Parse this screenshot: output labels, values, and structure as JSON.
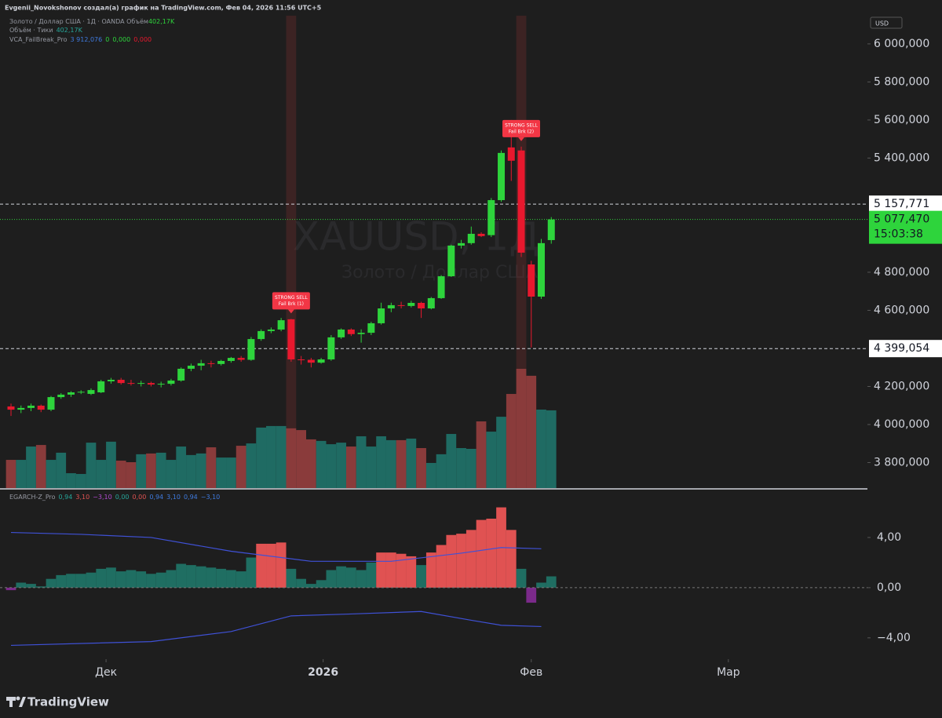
{
  "header": {
    "author": "Evgenii_Novokshonov создал(а) график на TradingView.com, Фев 04, 2026 11:56 UTC+5",
    "legend": [
      [
        "Золото / Доллар США · 1Д · OANDA  Объём",
        "402,17K"
      ],
      [
        "Объём · Тики",
        "402,17K"
      ],
      [
        "VCA_FailBreak_Pro",
        "3 912,076",
        "0",
        "0,000",
        "0,000"
      ]
    ],
    "watermark": "XAUUSD, 1Д",
    "watermark_sub": "Золото / Доллар США",
    "currency": "USD",
    "brand": "TradingView"
  },
  "chart_data": [
    {
      "type": "candlestick",
      "open": [
        4095,
        4078,
        4087,
        4099,
        4078,
        4144,
        4157,
        4169,
        4161,
        4169,
        4227,
        4235,
        4218,
        4214,
        4218,
        4210,
        4214,
        4231,
        4293,
        4309,
        4322,
        4318,
        4334,
        4350,
        4340,
        4449,
        4491,
        4499,
        4553,
        4342,
        4340,
        4325,
        4342,
        4458,
        4499,
        4475,
        4482,
        4532,
        4610,
        4627,
        4623,
        4639,
        4610,
        4664,
        4779,
        4940,
        4953,
        5002,
        4995,
        5179,
        5456,
        5440,
        4841,
        4672,
        4969
      ],
      "high": [
        4110,
        4100,
        4110,
        4105,
        4150,
        4165,
        4175,
        4180,
        4190,
        4235,
        4245,
        4245,
        4235,
        4230,
        4225,
        4225,
        4240,
        4300,
        4320,
        4340,
        4335,
        4340,
        4355,
        4360,
        4460,
        4500,
        4510,
        4560,
        4555,
        4360,
        4350,
        4350,
        4470,
        4505,
        4505,
        4500,
        4540,
        4640,
        4640,
        4645,
        4650,
        4645,
        4670,
        4785,
        4945,
        4970,
        5040,
        5010,
        5190,
        5440,
        5600,
        5460,
        4860,
        4975,
        5090
      ],
      "low": [
        4045,
        4060,
        4070,
        4065,
        4070,
        4135,
        4145,
        4160,
        4155,
        4165,
        4215,
        4210,
        4205,
        4200,
        4200,
        4195,
        4205,
        4225,
        4280,
        4285,
        4300,
        4310,
        4325,
        4330,
        4335,
        4440,
        4480,
        4490,
        4330,
        4315,
        4300,
        4320,
        4335,
        4450,
        4465,
        4430,
        4470,
        4525,
        4590,
        4610,
        4615,
        4560,
        4605,
        4660,
        4775,
        4925,
        4945,
        4985,
        4985,
        5170,
        5280,
        4880,
        4405,
        4660,
        4950
      ],
      "close": [
        4078,
        4087,
        4099,
        4078,
        4144,
        4157,
        4169,
        4172,
        4181,
        4227,
        4235,
        4218,
        4214,
        4218,
        4210,
        4214,
        4231,
        4293,
        4309,
        4322,
        4318,
        4334,
        4350,
        4340,
        4449,
        4491,
        4499,
        4548,
        4342,
        4340,
        4325,
        4342,
        4458,
        4499,
        4475,
        4482,
        4532,
        4610,
        4627,
        4623,
        4639,
        4610,
        4664,
        4779,
        4940,
        4953,
        5002,
        4990,
        5179,
        5427,
        5386,
        4903,
        4672,
        4953,
        5077.47
      ],
      "volume": [
        146,
        146,
        215,
        223,
        146,
        183,
        77,
        73,
        235,
        146,
        240,
        142,
        134,
        175,
        179,
        183,
        146,
        215,
        171,
        179,
        211,
        158,
        158,
        219,
        231,
        313,
        321,
        321,
        309,
        300,
        252,
        244,
        227,
        235,
        215,
        268,
        215,
        268,
        248,
        248,
        256,
        207,
        130,
        175,
        280,
        207,
        203,
        345,
        292,
        369,
        487,
        617,
        581,
        406,
        402.17
      ],
      "vlim": [
        0,
        617
      ],
      "up_color": "#2ed43c",
      "down_color": "#e8182e",
      "volume_up_color": "#1f6b63",
      "volume_down_color": "#8a3b3b",
      "ylim": [
        3666,
        6148
      ],
      "yticks": [
        {
          "value": 3800,
          "label": "3 800,000"
        },
        {
          "value": 4000,
          "label": "4 000,000"
        },
        {
          "value": 4200,
          "label": "4 200,000"
        },
        {
          "value": 4600,
          "label": "4 600,000"
        },
        {
          "value": 4800,
          "label": "4 800,000"
        },
        {
          "value": 5400,
          "label": "5 400,000"
        },
        {
          "value": 5600,
          "label": "5 600,000"
        },
        {
          "value": 5800,
          "label": "5 800,000"
        },
        {
          "value": 6000,
          "label": "6 000,000"
        }
      ],
      "xlim": [
        -1.1,
        85.6
      ],
      "xticks": [
        {
          "value": 9.5,
          "label": "Дек"
        },
        {
          "value": 31.2,
          "label": "2026"
        },
        {
          "value": 52.0,
          "label": "Фев"
        },
        {
          "value": 71.7,
          "label": "Мар"
        }
      ],
      "levels": [
        {
          "value": 5157.771,
          "label": "5 157,771"
        },
        {
          "value": 4399.054,
          "label": "4 399,054"
        }
      ],
      "last": {
        "value": 5077.47,
        "label": "5 077,470",
        "timer": "15:03:38"
      },
      "signals": [
        {
          "x": 28,
          "title": "STRONG SELL",
          "label": "Fail Brk (1)"
        },
        {
          "x": 51,
          "title": "STRONG SELL",
          "label": "Fail Brk (2)"
        }
      ]
    },
    {
      "type": "histogram",
      "name": "EGARCH-Z_Pro",
      "legend_values": [
        "0,94",
        "3,10",
        "−3,10",
        "0,00",
        "0,00",
        "0,94",
        "3,10",
        "0,94",
        "−3,10"
      ],
      "values": [
        -0.2,
        0.4,
        0.3,
        0.1,
        0.7,
        1.0,
        1.1,
        1.1,
        1.2,
        1.5,
        1.6,
        1.3,
        1.4,
        1.3,
        1.1,
        1.2,
        1.4,
        1.9,
        1.8,
        1.7,
        1.6,
        1.5,
        1.4,
        1.3,
        2.4,
        3.5,
        3.5,
        3.6,
        1.5,
        0.7,
        0.3,
        0.6,
        1.4,
        1.7,
        1.6,
        1.4,
        2.0,
        2.8,
        2.8,
        2.7,
        2.5,
        1.8,
        2.8,
        3.4,
        4.2,
        4.3,
        4.6,
        5.4,
        5.5,
        6.4,
        4.6,
        1.5,
        -1.2,
        0.4,
        0.9
      ],
      "upper_band": {
        "x": [
          0,
          7,
          14,
          22,
          30,
          38,
          45,
          49,
          53
        ],
        "values": [
          4.4,
          4.25,
          4.0,
          2.9,
          2.1,
          2.1,
          2.75,
          3.2,
          3.1
        ]
      },
      "lower_band": {
        "x": [
          0,
          14,
          22,
          28,
          34,
          41,
          46,
          49,
          53
        ],
        "values": [
          -4.6,
          -4.3,
          -3.5,
          -2.25,
          -2.1,
          -1.9,
          -2.6,
          -3.0,
          -3.1
        ]
      },
      "above_color": "#e05252",
      "neutral_color": "#1f6e62",
      "negative_color": "#7b2a8a",
      "band_color": "#3f51d6",
      "ylim": [
        -5.7,
        7.75
      ],
      "yticks": [
        {
          "value": -4,
          "label": "−4,00"
        },
        {
          "value": 0,
          "label": "0,00"
        },
        {
          "value": 4,
          "label": "4,00"
        }
      ]
    }
  ]
}
